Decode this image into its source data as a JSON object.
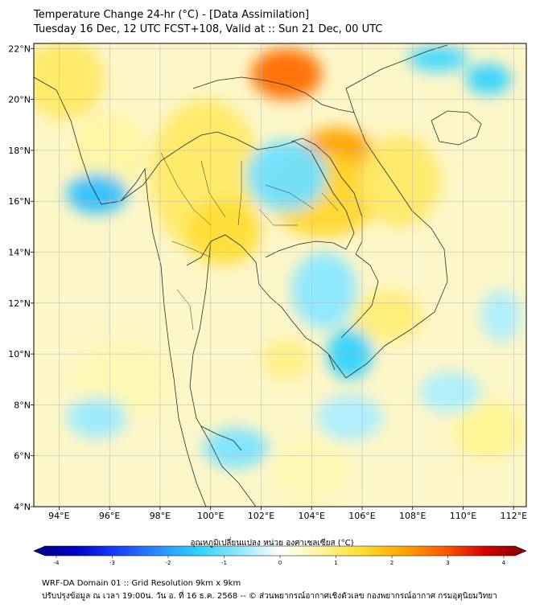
{
  "title": {
    "line1": "Temperature Change 24-hr (°C) - [Data Assimilation]",
    "line2": "Tuesday 16 Dec, 12 UTC FCST+108, Valid at :: Sun 21 Dec, 00 UTC"
  },
  "map": {
    "lon_range": [
      93,
      112.5
    ],
    "lat_range": [
      4,
      22.2
    ],
    "lon_ticks": [
      {
        "value": 94,
        "label": "94°E"
      },
      {
        "value": 96,
        "label": "96°E"
      },
      {
        "value": 98,
        "label": "98°E"
      },
      {
        "value": 100,
        "label": "100°E"
      },
      {
        "value": 102,
        "label": "102°E"
      },
      {
        "value": 104,
        "label": "104°E"
      },
      {
        "value": 106,
        "label": "106°E"
      },
      {
        "value": 108,
        "label": "108°E"
      },
      {
        "value": 110,
        "label": "110°E"
      },
      {
        "value": 112,
        "label": "112°E"
      }
    ],
    "lat_ticks": [
      {
        "value": 22,
        "label": "22°N"
      },
      {
        "value": 20,
        "label": "20°N"
      },
      {
        "value": 18,
        "label": "18°N"
      },
      {
        "value": 16,
        "label": "16°N"
      },
      {
        "value": 14,
        "label": "14°N"
      },
      {
        "value": 12,
        "label": "12°N"
      },
      {
        "value": 10,
        "label": "10°N"
      },
      {
        "value": 8,
        "label": "8°N"
      },
      {
        "value": 6,
        "label": "6°N"
      },
      {
        "value": 4,
        "label": "4°N"
      }
    ],
    "warm_regions": [
      {
        "lon": 103.0,
        "lat": 21.0,
        "rx": 1.4,
        "ry": 1.0,
        "value": 2.5
      },
      {
        "lon": 105.0,
        "lat": 17.6,
        "rx": 1.6,
        "ry": 1.3,
        "value": 2.0
      },
      {
        "lon": 104.5,
        "lat": 16.2,
        "rx": 2.2,
        "ry": 1.6,
        "value": 1.4
      },
      {
        "lon": 99.8,
        "lat": 17.0,
        "rx": 2.2,
        "ry": 3.0,
        "value": 1.0
      },
      {
        "lon": 100.5,
        "lat": 14.8,
        "rx": 1.5,
        "ry": 1.3,
        "value": 1.3
      },
      {
        "lon": 94.2,
        "lat": 20.8,
        "rx": 1.6,
        "ry": 1.6,
        "value": 1.0
      },
      {
        "lon": 107.5,
        "lat": 16.8,
        "rx": 1.6,
        "ry": 1.8,
        "value": 1.0
      },
      {
        "lon": 107.0,
        "lat": 11.5,
        "rx": 1.4,
        "ry": 1.0,
        "value": 0.9
      },
      {
        "lon": 103.0,
        "lat": 9.8,
        "rx": 1.0,
        "ry": 0.8,
        "value": 0.8
      },
      {
        "lon": 111.0,
        "lat": 7.0,
        "rx": 1.4,
        "ry": 1.2,
        "value": 0.7
      },
      {
        "lon": 96.5,
        "lat": 9.0,
        "rx": 2.0,
        "ry": 1.5,
        "value": 0.5
      },
      {
        "lon": 104.0,
        "lat": 5.5,
        "rx": 1.6,
        "ry": 1.2,
        "value": 0.5
      },
      {
        "lon": 96.0,
        "lat": 18.0,
        "rx": 1.5,
        "ry": 1.5,
        "value": 0.6
      }
    ],
    "cool_regions": [
      {
        "lon": 95.5,
        "lat": 16.3,
        "rx": 1.2,
        "ry": 0.8,
        "value": -1.5
      },
      {
        "lon": 103.0,
        "lat": 17.0,
        "rx": 1.6,
        "ry": 1.4,
        "value": -0.9
      },
      {
        "lon": 109.0,
        "lat": 21.6,
        "rx": 1.2,
        "ry": 0.5,
        "value": -1.2
      },
      {
        "lon": 111.0,
        "lat": 20.8,
        "rx": 0.9,
        "ry": 0.6,
        "value": -1.3
      },
      {
        "lon": 105.5,
        "lat": 10.0,
        "rx": 0.9,
        "ry": 1.0,
        "value": -1.3
      },
      {
        "lon": 104.5,
        "lat": 12.5,
        "rx": 1.3,
        "ry": 1.5,
        "value": -0.7
      },
      {
        "lon": 101.0,
        "lat": 6.3,
        "rx": 1.3,
        "ry": 0.8,
        "value": -0.8
      },
      {
        "lon": 95.5,
        "lat": 7.5,
        "rx": 1.2,
        "ry": 0.8,
        "value": -0.6
      },
      {
        "lon": 105.5,
        "lat": 7.5,
        "rx": 1.3,
        "ry": 0.9,
        "value": -0.5
      },
      {
        "lon": 111.5,
        "lat": 11.5,
        "rx": 0.8,
        "ry": 1.0,
        "value": -0.5
      },
      {
        "lon": 109.5,
        "lat": 8.5,
        "rx": 1.2,
        "ry": 0.8,
        "value": -0.5
      }
    ]
  },
  "colorbar": {
    "label": "อุณหภูมิเปลี่ยนแปลง หน่วย องศาเซลเซียส (°C)",
    "min": -4,
    "max": 4,
    "ticks": [
      {
        "value": -4,
        "label": "-4"
      },
      {
        "value": -3,
        "label": "-3"
      },
      {
        "value": -2,
        "label": "-2"
      },
      {
        "value": -1,
        "label": "-1"
      },
      {
        "value": 0,
        "label": "0"
      },
      {
        "value": 1,
        "label": "1"
      },
      {
        "value": 2,
        "label": "2"
      },
      {
        "value": 3,
        "label": "3"
      },
      {
        "value": 4,
        "label": "4"
      }
    ],
    "stops": [
      "#00007f",
      "#0000c8",
      "#1a3cff",
      "#2a8cff",
      "#2fd1ff",
      "#8fe8ff",
      "#ffffff",
      "#fff59a",
      "#ffdd33",
      "#ffa500",
      "#ff5a00",
      "#d40000",
      "#7f0000"
    ]
  },
  "footer": {
    "line1": "WRF-DA Domain 01 :: Grid Resolution 9km x 9km",
    "line2": "ปรับปรุงข้อมูล ณ เวลา 19:00น. วัน อ. ที่ 16 ธ.ค. 2568 -- © ส่วนพยากรณ์อากาศเชิงตัวเลข กองพยากรณ์อากาศ กรมอุตุนิยมวิทยา"
  },
  "colors": {
    "background_field": "#fdf6c8",
    "coastline": "#2a2a2a",
    "grid": "#b4b4b4",
    "frame": "#000000"
  }
}
